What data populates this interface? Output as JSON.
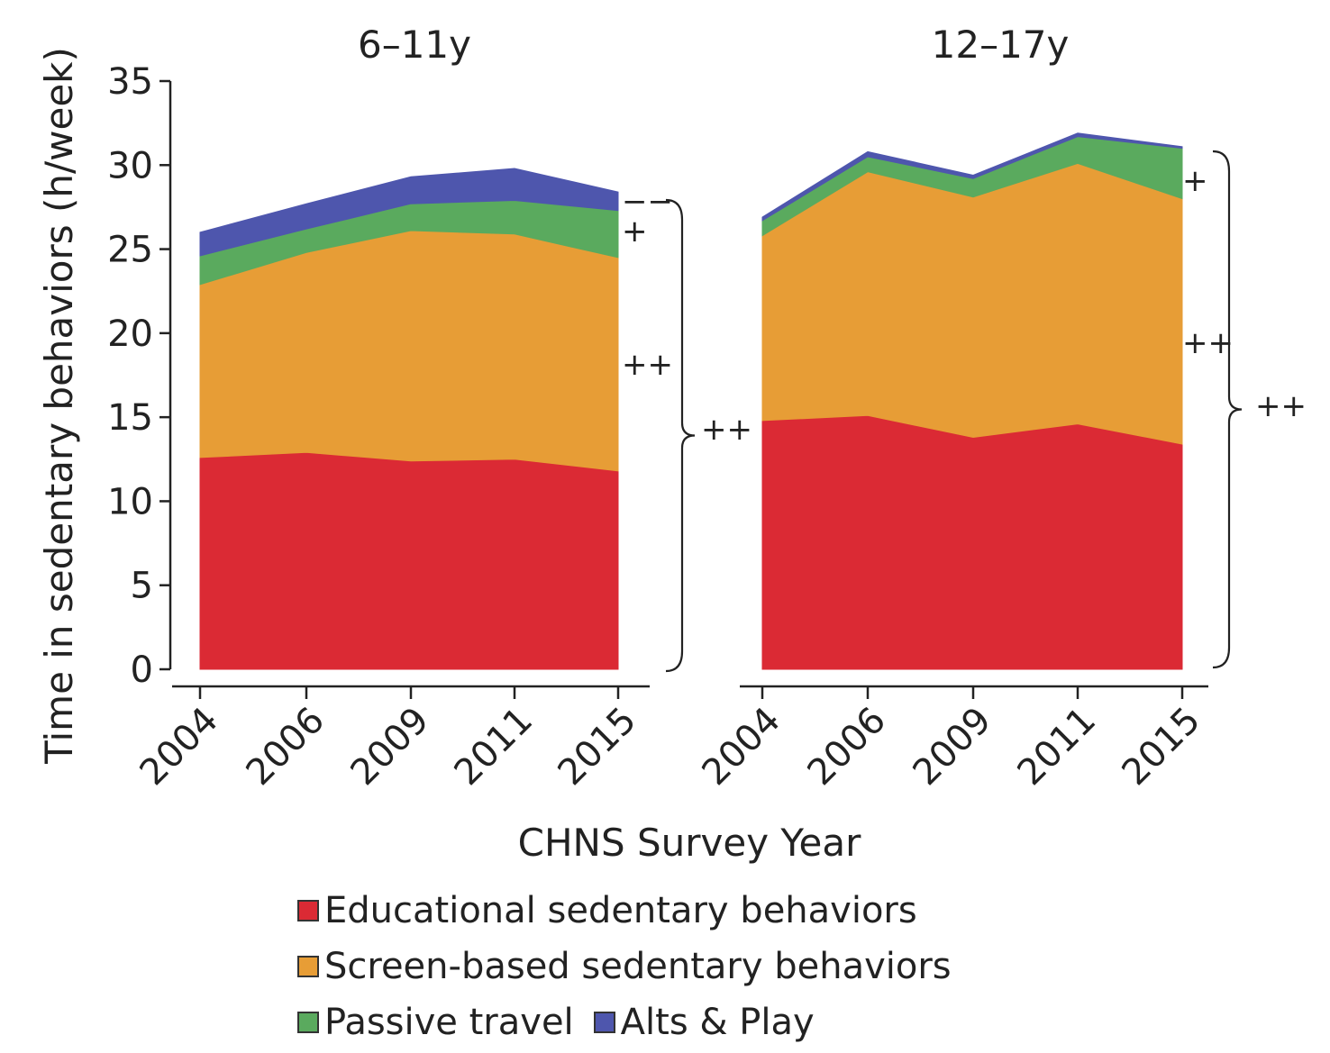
{
  "chart_data": {
    "type": "area",
    "stacked": true,
    "ylabel": "Time in sedentary behaviors (h/week)",
    "xlabel": "CHNS Survey Year",
    "ylim": [
      0,
      35
    ],
    "yticks": [
      "0",
      "5",
      "10",
      "15",
      "20",
      "25",
      "30",
      "35"
    ],
    "categories": [
      "2004",
      "2006",
      "2009",
      "2011",
      "2015"
    ],
    "colors": {
      "Educational sedentary behaviors": "#db2a34",
      "Screen-based sedentary behaviors": "#e79d36",
      "Passive travel": "#5aaa5e",
      "Alts & Play": "#4e56ad"
    },
    "panels": [
      {
        "title": "6–11y",
        "series": [
          {
            "name": "Educational sedentary behaviors",
            "values": [
              12.6,
              12.9,
              12.4,
              12.5,
              11.8
            ]
          },
          {
            "name": "Screen-based sedentary behaviors",
            "values": [
              10.3,
              11.9,
              13.7,
              13.4,
              12.7
            ]
          },
          {
            "name": "Passive travel",
            "values": [
              1.7,
              1.4,
              1.6,
              2.0,
              2.8
            ]
          },
          {
            "name": "Alts & Play",
            "values": [
              1.4,
              1.5,
              1.6,
              1.9,
              1.1
            ]
          }
        ],
        "annotations": [
          "−−",
          "+",
          "++",
          "++"
        ]
      },
      {
        "title": "12–17y",
        "series": [
          {
            "name": "Educational sedentary behaviors",
            "values": [
              14.8,
              15.1,
              13.8,
              14.6,
              13.4
            ]
          },
          {
            "name": "Screen-based sedentary behaviors",
            "values": [
              11.0,
              14.5,
              14.3,
              15.5,
              14.6
            ]
          },
          {
            "name": "Passive travel",
            "values": [
              0.9,
              0.9,
              1.1,
              1.6,
              3.0
            ]
          },
          {
            "name": "Alts & Play",
            "values": [
              0.2,
              0.3,
              0.2,
              0.2,
              0.1
            ]
          }
        ],
        "annotations": [
          "+",
          "++",
          "++"
        ]
      }
    ]
  },
  "legend": {
    "items": [
      {
        "label": "Educational sedentary behaviors",
        "color": "#db2a34"
      },
      {
        "label": "Screen-based sedentary behaviors",
        "color": "#e79d36"
      },
      {
        "label": "Passive travel",
        "color": "#5aaa5e"
      },
      {
        "label": "Alts & Play",
        "color": "#4e56ad"
      }
    ]
  }
}
